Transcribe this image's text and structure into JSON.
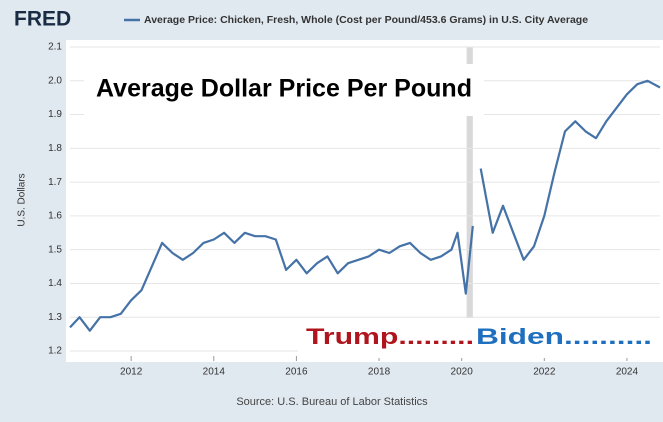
{
  "chart_data": {
    "type": "line",
    "brand": "FRED",
    "ylabel": "U.S. Dollars",
    "source": "Source: U.S. Bureau of Labor Statistics",
    "annotations": [
      "Average Dollar Price Per Pound",
      "Trump.........",
      "Biden.........."
    ],
    "annotation_colors": [
      "#000000",
      "#b0141c",
      "#1f6fbf"
    ],
    "shaded_ranges": [
      [
        2020.12,
        2020.27
      ]
    ],
    "shade_color": "#d9d9d9",
    "xlim": [
      2010.52,
      2024.8
    ],
    "xticks": [
      2012,
      2014,
      2016,
      2018,
      2020,
      2022,
      2024
    ],
    "ylim": [
      1.2,
      2.1
    ],
    "yticks": [
      1.2,
      1.3,
      1.4,
      1.5,
      1.6,
      1.7,
      1.8,
      1.9,
      {
        "value": 2,
        "label": "2.0"
      },
      2.1
    ],
    "grid": true,
    "x": [
      2010.52,
      2010.75,
      2011,
      2011.25,
      2011.5,
      2011.75,
      2012,
      2012.25,
      2012.5,
      2012.75,
      2013,
      2013.25,
      2013.5,
      2013.75,
      2014,
      2014.25,
      2014.5,
      2014.75,
      2015,
      2015.25,
      2015.5,
      2015.75,
      2016,
      2016.25,
      2016.5,
      2016.75,
      2017,
      2017.25,
      2017.5,
      2017.75,
      2018,
      2018.25,
      2018.5,
      2018.75,
      2019,
      2019.25,
      2019.5,
      2019.75,
      2019.9,
      2020.1,
      2020.27,
      2020.37,
      2020.46,
      2020.75,
      2021,
      2021.25,
      2021.5,
      2021.75,
      2022,
      2022.25,
      2022.5,
      2022.75,
      2023,
      2023.25,
      2023.5,
      2023.75,
      2024,
      2024.25,
      2024.5,
      2024.8
    ],
    "series": [
      {
        "name": "Average Price: Chicken, Fresh, Whole (Cost per Pound/453.6 Grams) in U.S. City Average",
        "color": "#4572a7",
        "values": [
          1.27,
          1.3,
          1.26,
          1.3,
          1.3,
          1.31,
          1.35,
          1.38,
          1.45,
          1.52,
          1.49,
          1.47,
          1.49,
          1.52,
          1.53,
          1.55,
          1.52,
          1.55,
          1.54,
          1.54,
          1.53,
          1.44,
          1.47,
          1.43,
          1.46,
          1.48,
          1.43,
          1.46,
          1.47,
          1.48,
          1.5,
          1.49,
          1.51,
          1.52,
          1.49,
          1.47,
          1.48,
          1.5,
          1.55,
          1.37,
          1.57,
          null,
          1.74,
          1.55,
          1.63,
          1.55,
          1.47,
          1.51,
          1.6,
          1.73,
          1.85,
          1.88,
          1.85,
          1.83,
          1.88,
          1.92,
          1.96,
          1.99,
          2.0,
          1.98
        ]
      }
    ]
  }
}
